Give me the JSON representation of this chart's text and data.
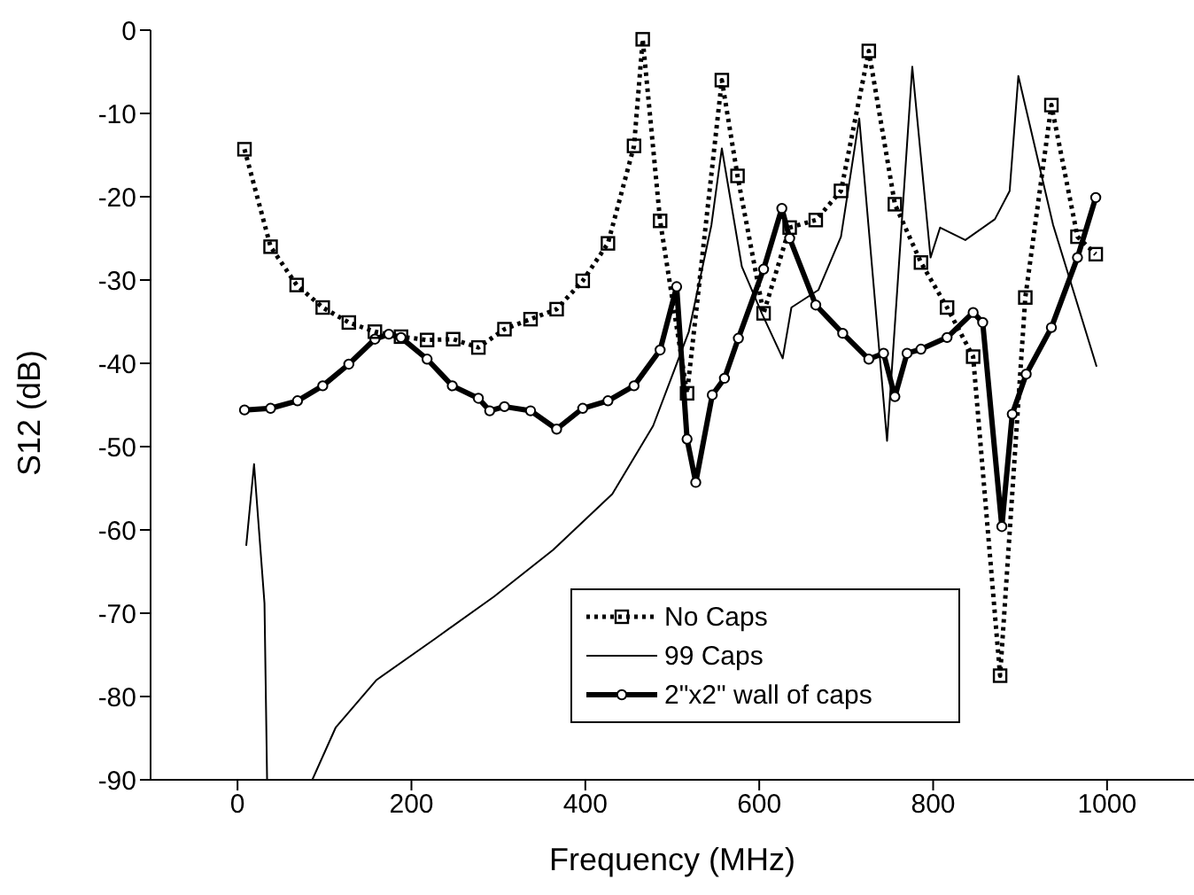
{
  "chart_data": {
    "type": "line",
    "xlabel": "Frequency (MHz)",
    "ylabel": "S12 (dB)",
    "xlim": [
      -100,
      1100
    ],
    "xticks": [
      0,
      200,
      400,
      600,
      800,
      1000
    ],
    "ylim": [
      -90,
      0
    ],
    "yticks": [
      -90,
      -80,
      -70,
      -60,
      -50,
      -40,
      -30,
      -20,
      -10,
      0
    ],
    "grid": false,
    "legend": "bottom right",
    "series": [
      {
        "name": "No Caps",
        "color": "#000000",
        "marker": "square",
        "line_style": "dotted",
        "x": [
          8,
          38,
          68,
          98,
          128,
          158,
          188,
          218,
          248,
          277,
          307,
          337,
          367,
          397,
          426,
          456,
          466,
          486,
          517,
          557,
          575,
          605,
          635,
          665,
          694,
          726,
          756,
          786,
          816,
          846,
          877,
          906,
          936,
          966,
          987
        ],
        "values": [
          -14.3,
          -26,
          -30.6,
          -33.3,
          -35.1,
          -36.2,
          -36.8,
          -37.2,
          -37.1,
          -38.1,
          -35.9,
          -34.7,
          -33.5,
          -30.1,
          -25.6,
          -13.9,
          -1.1,
          -22.9,
          -43.6,
          -6,
          -17.5,
          -34,
          -23.7,
          -22.8,
          -19.3,
          -2.5,
          -20.9,
          -27.9,
          -33.3,
          -39.2,
          -77.5,
          -32.1,
          -9,
          -24.8,
          -26.9
        ]
      },
      {
        "name": "99 Caps",
        "color": "#000000",
        "marker": "none",
        "line_style": "solid",
        "x": [
          10,
          19,
          31,
          34,
          86,
          113,
          160,
          228,
          295,
          363,
          431,
          478,
          519,
          545,
          557,
          580,
          603,
          627,
          637,
          668,
          694,
          715,
          747,
          776,
          797,
          808,
          837,
          871,
          888,
          898,
          938,
          988
        ],
        "values": [
          -61.9,
          -52.1,
          -68.8,
          -90,
          -90,
          -83.7,
          -78,
          -73,
          -68,
          -62.4,
          -55.7,
          -47.5,
          -36.2,
          -23.4,
          -14.2,
          -28.4,
          -34,
          -39.4,
          -33.3,
          -31.2,
          -24.8,
          -10.6,
          -49.3,
          -4.4,
          -27.3,
          -23.7,
          -25.2,
          -22.7,
          -19.3,
          -5.5,
          -23.4,
          -40.4
        ]
      },
      {
        "name": "2\"x2\" wall of caps",
        "color": "#000000",
        "marker": "circle",
        "line_style": "solid",
        "x": [
          8,
          38,
          69,
          98,
          128,
          158,
          174,
          188,
          218,
          247,
          277,
          290,
          307,
          337,
          367,
          397,
          426,
          456,
          486,
          505,
          517,
          527,
          546,
          560,
          576,
          605,
          626,
          635,
          665,
          696,
          726,
          743,
          756,
          770,
          786,
          816,
          846,
          857,
          879,
          891,
          907,
          936,
          966,
          987
        ],
        "values": [
          -45.6,
          -45.4,
          -44.5,
          -42.7,
          -40.1,
          -37.1,
          -36.5,
          -36.9,
          -39.5,
          -42.7,
          -44.2,
          -45.7,
          -45.2,
          -45.7,
          -47.9,
          -45.4,
          -44.5,
          -42.7,
          -38.4,
          -30.8,
          -49.1,
          -54.3,
          -43.8,
          -41.8,
          -37,
          -28.7,
          -21.4,
          -25,
          -33,
          -36.4,
          -39.5,
          -38.8,
          -44,
          -38.8,
          -38.3,
          -36.9,
          -33.9,
          -35.1,
          -59.6,
          -46.1,
          -41.3,
          -35.7,
          -27.3,
          -20.1
        ]
      }
    ]
  }
}
